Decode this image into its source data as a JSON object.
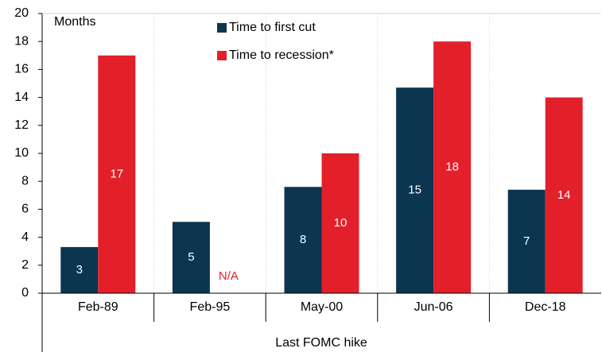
{
  "chart_data": {
    "type": "bar",
    "y_label": "Months",
    "x_label": "Last FOMC hike",
    "categories": [
      "Feb-89",
      "Feb-95",
      "May-00",
      "Jun-06",
      "Dec-18"
    ],
    "series": [
      {
        "name": "Time to first cut",
        "color": "#0c3550",
        "values": [
          3.3,
          5.1,
          7.6,
          14.7,
          7.4
        ],
        "value_labels": [
          "3",
          "5",
          "8",
          "15",
          "7"
        ]
      },
      {
        "name": "Time to recession*",
        "color": "#e3202a",
        "values": [
          17,
          null,
          10,
          18,
          14
        ],
        "value_labels": [
          "17",
          "N/A",
          "10",
          "18",
          "14"
        ]
      }
    ],
    "ylim": [
      0,
      20
    ],
    "yticks": [
      0,
      2,
      4,
      6,
      8,
      10,
      12,
      14,
      16,
      18,
      20
    ],
    "legend": "top"
  }
}
